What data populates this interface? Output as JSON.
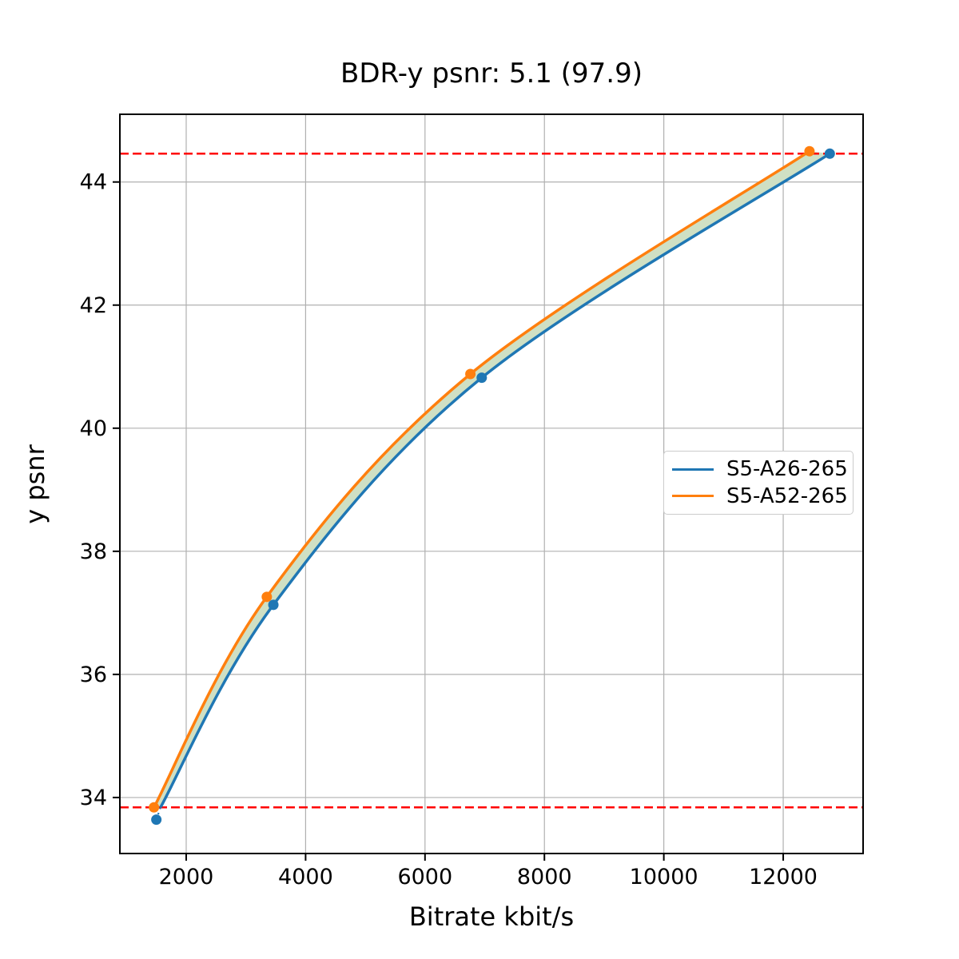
{
  "chart_data": {
    "type": "line",
    "title": "BDR-y psnr: 5.1 (97.9)",
    "xlabel": "Bitrate kbit/s",
    "ylabel": "y psnr",
    "xlim": [
      889,
      13338
    ],
    "ylim": [
      33.09,
      45.1
    ],
    "xticks": [
      2000,
      4000,
      6000,
      8000,
      10000,
      12000
    ],
    "yticks": [
      34,
      36,
      38,
      40,
      42,
      44
    ],
    "grid": true,
    "grid_color": "#b0b0b0",
    "hlines": {
      "values": [
        44.46,
        33.84
      ],
      "color": "#ff0000",
      "style": "dashed"
    },
    "series": [
      {
        "name": "S5-A26-265",
        "color": "#1f77b4",
        "points": [
          [
            1500,
            33.64
          ],
          [
            3460,
            37.13
          ],
          [
            6950,
            40.82
          ],
          [
            12780,
            44.46
          ]
        ],
        "curve_points": [
          [
            1570,
            33.84
          ],
          [
            3460,
            37.13
          ],
          [
            6950,
            40.82
          ],
          [
            12780,
            44.46
          ]
        ],
        "dotted_stub": [
          [
            1500,
            33.64
          ],
          [
            1570,
            33.84
          ]
        ]
      },
      {
        "name": "S5-A52-265",
        "color": "#ff7f0e",
        "points": [
          [
            1460,
            33.84
          ],
          [
            3350,
            37.26
          ],
          [
            6760,
            40.88
          ],
          [
            12440,
            44.5
          ]
        ],
        "curve_points": [
          [
            1460,
            33.84
          ],
          [
            3350,
            37.26
          ],
          [
            6760,
            40.88
          ],
          [
            12440,
            44.5
          ]
        ]
      }
    ],
    "fill_between": {
      "color": "#cfe0c4"
    },
    "legend": {
      "position": "center-right",
      "entries": [
        "S5-A26-265",
        "S5-A52-265"
      ]
    }
  }
}
